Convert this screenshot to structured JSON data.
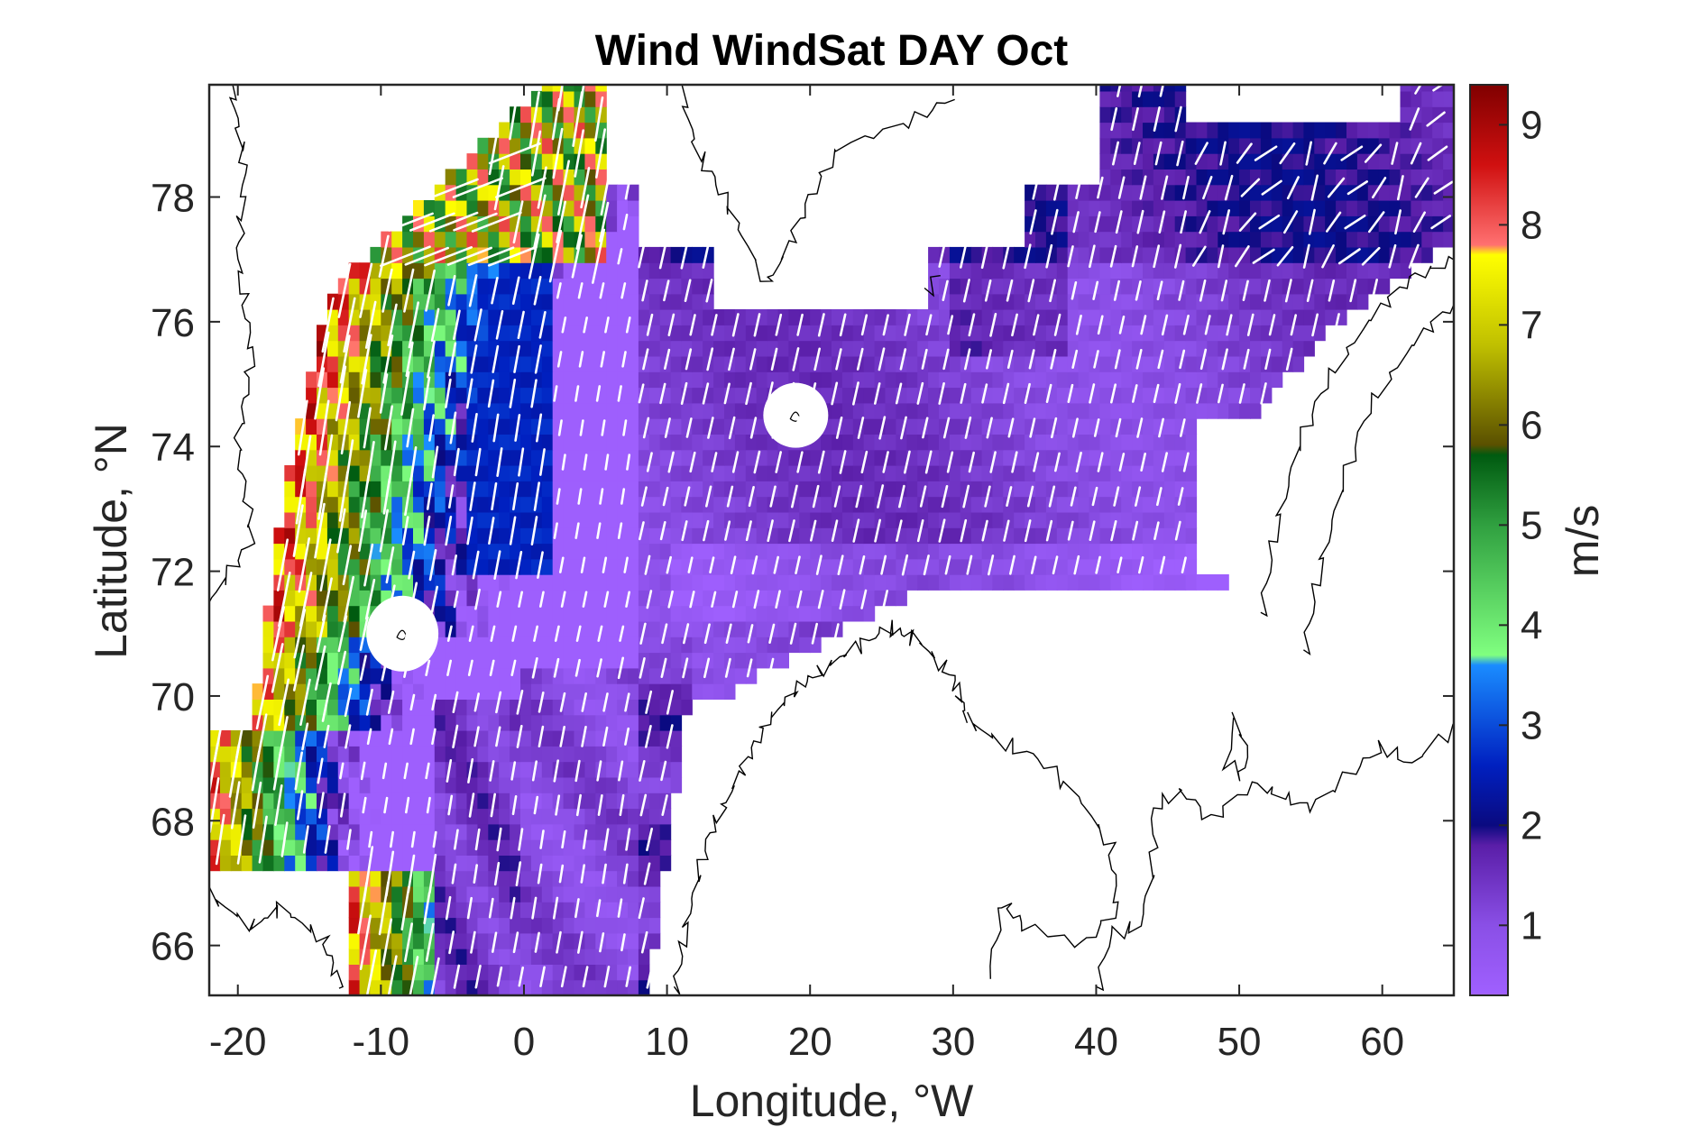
{
  "chart_data": {
    "type": "heatmap",
    "title": "Wind WindSat DAY Oct",
    "xlabel": "Longitude, °W",
    "ylabel": "Latitude, °N",
    "xlim": [
      -22,
      65
    ],
    "ylim": [
      65.2,
      79.8
    ],
    "xticks": [
      -20,
      -10,
      0,
      10,
      20,
      30,
      40,
      50,
      60
    ],
    "xtick_labels": [
      "-20",
      "-10",
      "0",
      "10",
      "20",
      "30",
      "40",
      "50",
      "60"
    ],
    "yticks": [
      66,
      68,
      70,
      72,
      74,
      76,
      78
    ],
    "ytick_labels": [
      "66",
      "68",
      "70",
      "72",
      "74",
      "76",
      "78"
    ],
    "grid": false,
    "colorbar": {
      "label": "m/s",
      "range": [
        0.3,
        9.4
      ],
      "ticks": [
        1,
        2,
        3,
        4,
        5,
        6,
        7,
        8,
        9
      ],
      "tick_labels": [
        "1",
        "2",
        "3",
        "4",
        "5",
        "6",
        "7",
        "8",
        "9"
      ],
      "stops": [
        {
          "v": 0.3,
          "color": "#a060ff"
        },
        {
          "v": 1.0,
          "color": "#8a4fe6"
        },
        {
          "v": 1.8,
          "color": "#5a1ea8"
        },
        {
          "v": 2.0,
          "color": "#0a0a80"
        },
        {
          "v": 2.6,
          "color": "#0020c0"
        },
        {
          "v": 3.6,
          "color": "#1a8cff"
        },
        {
          "v": 3.7,
          "color": "#80ff80"
        },
        {
          "v": 5.0,
          "color": "#30a040"
        },
        {
          "v": 5.7,
          "color": "#005a10"
        },
        {
          "v": 5.8,
          "color": "#5a5000"
        },
        {
          "v": 6.8,
          "color": "#c0c000"
        },
        {
          "v": 7.7,
          "color": "#ffff00"
        },
        {
          "v": 7.8,
          "color": "#ff7070"
        },
        {
          "v": 8.6,
          "color": "#d01010"
        },
        {
          "v": 9.4,
          "color": "#800000"
        }
      ]
    },
    "vector_color": "#ffffff",
    "coastline_color": "#000000"
  }
}
